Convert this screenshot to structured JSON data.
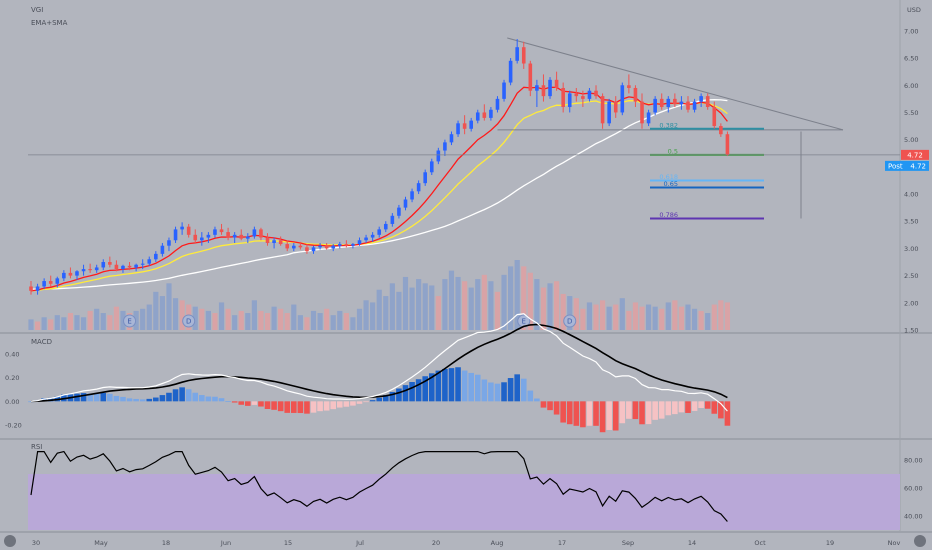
{
  "header": {
    "symbol": "VGI",
    "indicators": "EMA+SMA"
  },
  "currency": "USD",
  "colors": {
    "background": "#b2b5be",
    "up": "#2962ff",
    "down": "#ef5350",
    "vol_up": "#8fa3c9",
    "vol_down": "#d9a3a6",
    "ema_red": "#ff1a1a",
    "ema_yellow": "#ffeb3b",
    "sma_white": "#ffffff",
    "trendline": "#7d818c",
    "macd_line": "#000000",
    "signal_line": "#ffffff",
    "rsi_band": "#b9a8d8",
    "rsi_line": "#000000",
    "last_price": "#ef5350",
    "post_badge": "#2196f3"
  },
  "chart_data": [
    {
      "type": "candlestick",
      "pane": "price",
      "y_ticks": [
        "1.50",
        "2.00",
        "2.50",
        "3.00",
        "3.50",
        "4.00",
        "4.50",
        "5.00",
        "5.50",
        "6.00",
        "6.50",
        "7.00"
      ],
      "ylim": [
        1.5,
        7.2
      ],
      "x_labels": [
        "30",
        "May",
        "18",
        "Jun",
        "15",
        "Jul",
        "20",
        "Aug",
        "17",
        "Sep",
        "14",
        "Oct",
        "19",
        "Nov"
      ],
      "candles": [
        [
          2.3,
          2.4,
          2.15,
          2.22
        ],
        [
          2.22,
          2.35,
          2.15,
          2.3
        ],
        [
          2.3,
          2.45,
          2.25,
          2.4
        ],
        [
          2.4,
          2.5,
          2.3,
          2.35
        ],
        [
          2.35,
          2.48,
          2.28,
          2.45
        ],
        [
          2.45,
          2.6,
          2.4,
          2.55
        ],
        [
          2.55,
          2.65,
          2.45,
          2.5
        ],
        [
          2.5,
          2.6,
          2.42,
          2.58
        ],
        [
          2.58,
          2.7,
          2.5,
          2.62
        ],
        [
          2.62,
          2.72,
          2.55,
          2.6
        ],
        [
          2.6,
          2.7,
          2.55,
          2.65
        ],
        [
          2.65,
          2.8,
          2.6,
          2.75
        ],
        [
          2.75,
          2.85,
          2.65,
          2.7
        ],
        [
          2.7,
          2.78,
          2.58,
          2.62
        ],
        [
          2.62,
          2.7,
          2.55,
          2.68
        ],
        [
          2.68,
          2.75,
          2.6,
          2.65
        ],
        [
          2.65,
          2.72,
          2.58,
          2.7
        ],
        [
          2.7,
          2.8,
          2.62,
          2.72
        ],
        [
          2.72,
          2.85,
          2.68,
          2.8
        ],
        [
          2.8,
          2.95,
          2.75,
          2.9
        ],
        [
          2.9,
          3.1,
          2.85,
          3.05
        ],
        [
          3.05,
          3.2,
          2.95,
          3.15
        ],
        [
          3.15,
          3.4,
          3.1,
          3.35
        ],
        [
          3.35,
          3.48,
          3.25,
          3.4
        ],
        [
          3.4,
          3.45,
          3.2,
          3.25
        ],
        [
          3.25,
          3.35,
          3.1,
          3.15
        ],
        [
          3.15,
          3.3,
          3.05,
          3.2
        ],
        [
          3.2,
          3.3,
          3.1,
          3.25
        ],
        [
          3.25,
          3.4,
          3.2,
          3.35
        ],
        [
          3.35,
          3.45,
          3.25,
          3.3
        ],
        [
          3.3,
          3.38,
          3.15,
          3.2
        ],
        [
          3.2,
          3.3,
          3.1,
          3.25
        ],
        [
          3.25,
          3.35,
          3.15,
          3.18
        ],
        [
          3.18,
          3.28,
          3.1,
          3.22
        ],
        [
          3.22,
          3.4,
          3.18,
          3.35
        ],
        [
          3.35,
          3.38,
          3.15,
          3.2
        ],
        [
          3.2,
          3.28,
          3.05,
          3.1
        ],
        [
          3.1,
          3.2,
          3.0,
          3.15
        ],
        [
          3.15,
          3.22,
          3.05,
          3.08
        ],
        [
          3.08,
          3.15,
          2.95,
          3.0
        ],
        [
          3.0,
          3.1,
          2.95,
          3.05
        ],
        [
          3.05,
          3.12,
          2.98,
          3.02
        ],
        [
          3.02,
          3.08,
          2.9,
          2.95
        ],
        [
          2.95,
          3.05,
          2.9,
          3.02
        ],
        [
          3.02,
          3.1,
          2.98,
          3.05
        ],
        [
          3.05,
          3.1,
          2.98,
          3.0
        ],
        [
          3.0,
          3.08,
          2.95,
          3.05
        ],
        [
          3.05,
          3.12,
          3.0,
          3.08
        ],
        [
          3.08,
          3.15,
          3.02,
          3.05
        ],
        [
          3.05,
          3.1,
          3.0,
          3.08
        ],
        [
          3.08,
          3.2,
          3.05,
          3.15
        ],
        [
          3.15,
          3.25,
          3.1,
          3.2
        ],
        [
          3.2,
          3.3,
          3.12,
          3.25
        ],
        [
          3.25,
          3.4,
          3.2,
          3.35
        ],
        [
          3.35,
          3.5,
          3.3,
          3.45
        ],
        [
          3.45,
          3.65,
          3.4,
          3.6
        ],
        [
          3.6,
          3.8,
          3.55,
          3.75
        ],
        [
          3.75,
          3.95,
          3.7,
          3.9
        ],
        [
          3.9,
          4.1,
          3.85,
          4.05
        ],
        [
          4.05,
          4.25,
          4.0,
          4.2
        ],
        [
          4.2,
          4.45,
          4.15,
          4.4
        ],
        [
          4.4,
          4.65,
          4.35,
          4.6
        ],
        [
          4.6,
          4.85,
          4.55,
          4.8
        ],
        [
          4.8,
          5.0,
          4.7,
          4.95
        ],
        [
          4.95,
          5.15,
          4.9,
          5.1
        ],
        [
          5.1,
          5.35,
          5.05,
          5.3
        ],
        [
          5.3,
          5.45,
          5.1,
          5.2
        ],
        [
          5.2,
          5.4,
          5.15,
          5.35
        ],
        [
          5.35,
          5.55,
          5.3,
          5.5
        ],
        [
          5.5,
          5.65,
          5.35,
          5.4
        ],
        [
          5.4,
          5.6,
          5.35,
          5.55
        ],
        [
          5.55,
          5.8,
          5.5,
          5.75
        ],
        [
          5.75,
          6.1,
          5.7,
          6.05
        ],
        [
          6.05,
          6.5,
          6.0,
          6.45
        ],
        [
          6.45,
          6.85,
          6.4,
          6.7
        ],
        [
          6.7,
          6.8,
          6.3,
          6.4
        ],
        [
          6.4,
          6.45,
          5.8,
          5.9
        ],
        [
          5.9,
          6.1,
          5.6,
          6.0
        ],
        [
          6.0,
          6.2,
          5.7,
          5.8
        ],
        [
          5.8,
          6.15,
          5.75,
          6.1
        ],
        [
          6.1,
          6.25,
          5.9,
          5.95
        ],
        [
          5.95,
          6.05,
          5.5,
          5.6
        ],
        [
          5.6,
          5.9,
          5.5,
          5.85
        ],
        [
          5.85,
          5.95,
          5.7,
          5.8
        ],
        [
          5.8,
          5.9,
          5.6,
          5.75
        ],
        [
          5.75,
          5.95,
          5.7,
          5.9
        ],
        [
          5.9,
          6.0,
          5.75,
          5.8
        ],
        [
          5.8,
          5.85,
          5.2,
          5.3
        ],
        [
          5.3,
          5.75,
          5.25,
          5.7
        ],
        [
          5.7,
          5.8,
          5.4,
          5.5
        ],
        [
          5.5,
          6.05,
          5.45,
          6.0
        ],
        [
          6.0,
          6.2,
          5.85,
          5.95
        ],
        [
          5.95,
          6.0,
          5.6,
          5.7
        ],
        [
          5.7,
          5.85,
          5.2,
          5.3
        ],
        [
          5.3,
          5.55,
          5.25,
          5.5
        ],
        [
          5.5,
          5.8,
          5.45,
          5.75
        ],
        [
          5.75,
          5.85,
          5.55,
          5.6
        ],
        [
          5.6,
          5.8,
          5.5,
          5.75
        ],
        [
          5.75,
          5.85,
          5.6,
          5.65
        ],
        [
          5.65,
          5.8,
          5.55,
          5.7
        ],
        [
          5.7,
          5.8,
          5.5,
          5.55
        ],
        [
          5.55,
          5.75,
          5.5,
          5.7
        ],
        [
          5.7,
          5.85,
          5.6,
          5.8
        ],
        [
          5.8,
          5.85,
          5.55,
          5.6
        ],
        [
          5.6,
          5.7,
          5.2,
          5.25
        ],
        [
          5.25,
          5.3,
          5.05,
          5.1
        ],
        [
          5.1,
          5.15,
          4.7,
          4.72
        ]
      ],
      "volume": [
        [
          5,
          1
        ],
        [
          4,
          0
        ],
        [
          6,
          1
        ],
        [
          5,
          0
        ],
        [
          7,
          1
        ],
        [
          6,
          1
        ],
        [
          8,
          0
        ],
        [
          7,
          1
        ],
        [
          6,
          1
        ],
        [
          9,
          0
        ],
        [
          10,
          1
        ],
        [
          8,
          1
        ],
        [
          7,
          0
        ],
        [
          11,
          0
        ],
        [
          9,
          1
        ],
        [
          8,
          0
        ],
        [
          9,
          1
        ],
        [
          10,
          1
        ],
        [
          12,
          1
        ],
        [
          18,
          1
        ],
        [
          16,
          1
        ],
        [
          22,
          1
        ],
        [
          15,
          1
        ],
        [
          14,
          0
        ],
        [
          12,
          0
        ],
        [
          11,
          1
        ],
        [
          10,
          0
        ],
        [
          9,
          1
        ],
        [
          8,
          0
        ],
        [
          13,
          1
        ],
        [
          10,
          0
        ],
        [
          7,
          1
        ],
        [
          9,
          0
        ],
        [
          8,
          1
        ],
        [
          14,
          1
        ],
        [
          9,
          0
        ],
        [
          8,
          0
        ],
        [
          11,
          1
        ],
        [
          10,
          0
        ],
        [
          8,
          0
        ],
        [
          12,
          1
        ],
        [
          7,
          1
        ],
        [
          6,
          0
        ],
        [
          9,
          1
        ],
        [
          8,
          1
        ],
        [
          10,
          0
        ],
        [
          7,
          1
        ],
        [
          9,
          1
        ],
        [
          8,
          0
        ],
        [
          6,
          1
        ],
        [
          10,
          1
        ],
        [
          14,
          1
        ],
        [
          13,
          1
        ],
        [
          19,
          1
        ],
        [
          16,
          1
        ],
        [
          22,
          1
        ],
        [
          18,
          1
        ],
        [
          25,
          1
        ],
        [
          20,
          1
        ],
        [
          24,
          1
        ],
        [
          22,
          1
        ],
        [
          21,
          1
        ],
        [
          16,
          0
        ],
        [
          24,
          1
        ],
        [
          28,
          1
        ],
        [
          25,
          1
        ],
        [
          23,
          0
        ],
        [
          20,
          1
        ],
        [
          24,
          1
        ],
        [
          26,
          0
        ],
        [
          23,
          1
        ],
        [
          18,
          0
        ],
        [
          26,
          1
        ],
        [
          30,
          1
        ],
        [
          33,
          1
        ],
        [
          30,
          0
        ],
        [
          27,
          0
        ],
        [
          24,
          1
        ],
        [
          20,
          0
        ],
        [
          22,
          1
        ],
        [
          23,
          0
        ],
        [
          17,
          0
        ],
        [
          16,
          1
        ],
        [
          15,
          0
        ],
        [
          10,
          0
        ],
        [
          13,
          1
        ],
        [
          12,
          0
        ],
        [
          14,
          0
        ],
        [
          11,
          1
        ],
        [
          12,
          0
        ],
        [
          15,
          1
        ],
        [
          9,
          0
        ],
        [
          13,
          0
        ],
        [
          11,
          0
        ],
        [
          12,
          1
        ],
        [
          11,
          1
        ],
        [
          10,
          0
        ],
        [
          13,
          1
        ],
        [
          14,
          0
        ],
        [
          11,
          0
        ],
        [
          12,
          1
        ],
        [
          10,
          1
        ],
        [
          9,
          0
        ],
        [
          8,
          1
        ],
        [
          12,
          0
        ],
        [
          14,
          0
        ],
        [
          13,
          0
        ]
      ],
      "fibonacci": [
        {
          "label": "0.382",
          "level": 5.2,
          "color": "#2e8fa3"
        },
        {
          "label": "0.5",
          "level": 4.72,
          "color": "#43a047"
        },
        {
          "label": "0.618",
          "level": 4.25,
          "color": "#64b5f6"
        },
        {
          "label": "0.65",
          "level": 4.12,
          "color": "#1565c0"
        },
        {
          "label": "0.786",
          "level": 3.55,
          "color": "#5e35b1"
        }
      ],
      "last_price": "4.72",
      "post_label": "Post",
      "post_price": "4.72",
      "earnings_markers": [
        "E",
        "D",
        "E",
        "D"
      ]
    },
    {
      "type": "macd",
      "pane": "macd",
      "title": "MACD",
      "y_ticks": [
        "0.40",
        "0.20",
        "0.00",
        "-0.20"
      ],
      "ylim": [
        -0.26,
        0.52
      ]
    },
    {
      "type": "line",
      "pane": "rsi",
      "title": "RSI",
      "y_ticks": [
        "80.00",
        "60.00",
        "40.00"
      ],
      "ylim": [
        30,
        90
      ],
      "band": [
        30,
        70
      ]
    }
  ],
  "scroll_buttons": [
    "scroll-left",
    "scroll-right"
  ]
}
